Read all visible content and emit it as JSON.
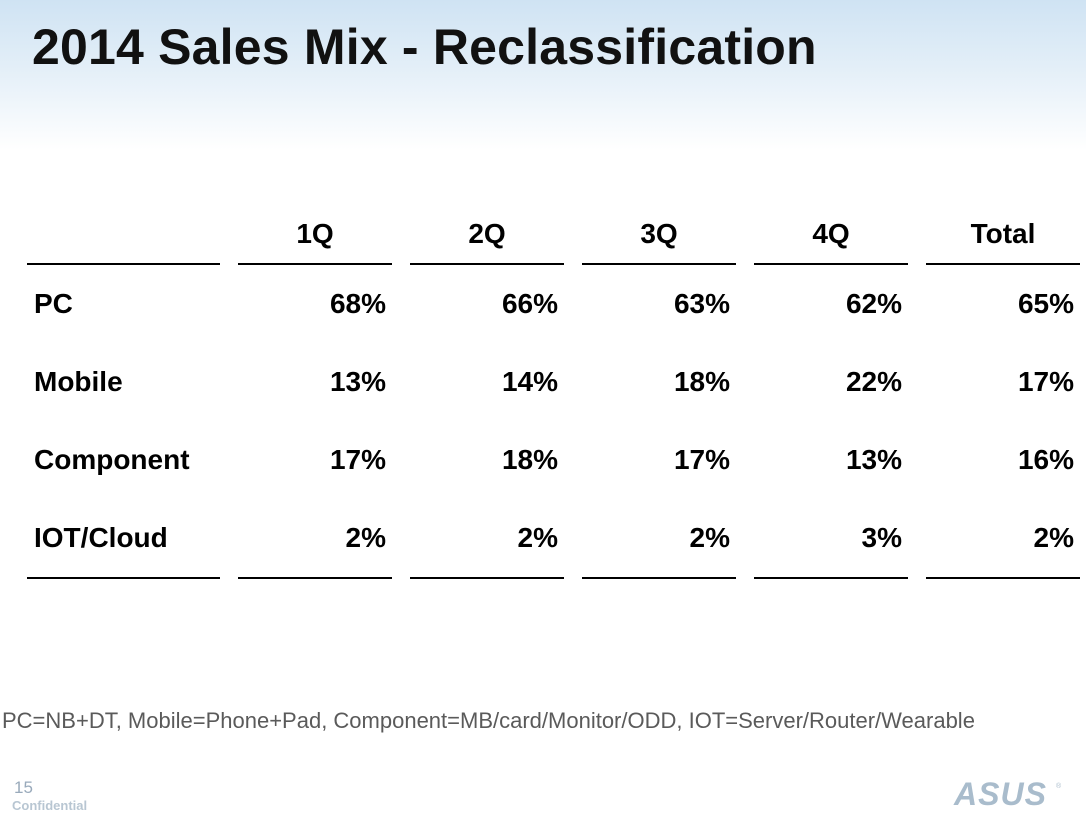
{
  "slide": {
    "title": "2014 Sales Mix - Reclassification",
    "note": "PC=NB+DT, Mobile=Phone+Pad, Component=MB/card/Monitor/ODD, IOT=Server/Router/Wearable",
    "page_number": "15",
    "confidential_label": "Confidential",
    "logo_text": "ASUS",
    "logo_color": "#a9bccc"
  },
  "table": {
    "headers": [
      "",
      "1Q",
      "2Q",
      "3Q",
      "4Q",
      "Total"
    ],
    "rows": [
      {
        "label": "PC",
        "values": [
          "68%",
          "66%",
          "63%",
          "62%",
          "65%"
        ]
      },
      {
        "label": "Mobile",
        "values": [
          "13%",
          "14%",
          "18%",
          "22%",
          "17%"
        ]
      },
      {
        "label": "Component",
        "values": [
          "17%",
          "18%",
          "17%",
          "13%",
          "16%"
        ]
      },
      {
        "label": "IOT/Cloud",
        "values": [
          "2%",
          "2%",
          "2%",
          "3%",
          "2%"
        ]
      }
    ]
  }
}
